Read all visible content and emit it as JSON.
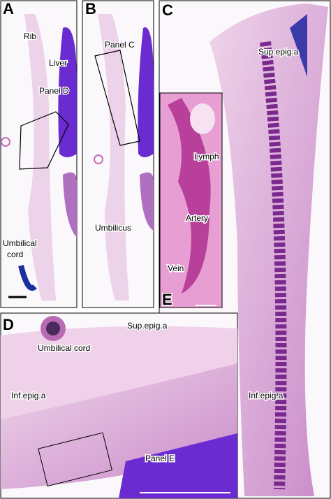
{
  "panels": [
    {
      "letter": "A",
      "labels": [
        {
          "text": "Rib"
        },
        {
          "text": "Liver"
        },
        {
          "text": "Panel D"
        },
        {
          "lines": [
            "Umbilical",
            "cord"
          ]
        }
      ]
    },
    {
      "letter": "B",
      "labels": [
        {
          "text": "Panel C"
        },
        {
          "text": "Umbilicus"
        }
      ]
    },
    {
      "letter": "C",
      "labels": [
        {
          "text": "Sup.epig.a"
        },
        {
          "text": "Inf.epig.a"
        }
      ]
    },
    {
      "letter": "E",
      "labels": [
        {
          "text": "Lymph"
        },
        {
          "text": "Artery"
        },
        {
          "text": "Vein"
        }
      ]
    },
    {
      "letter": "D",
      "labels": [
        {
          "text": "Sup.epig.a"
        },
        {
          "text": "Umbilical cord"
        },
        {
          "text": "Inf.epig.a"
        },
        {
          "text": "Panel E"
        }
      ]
    }
  ]
}
